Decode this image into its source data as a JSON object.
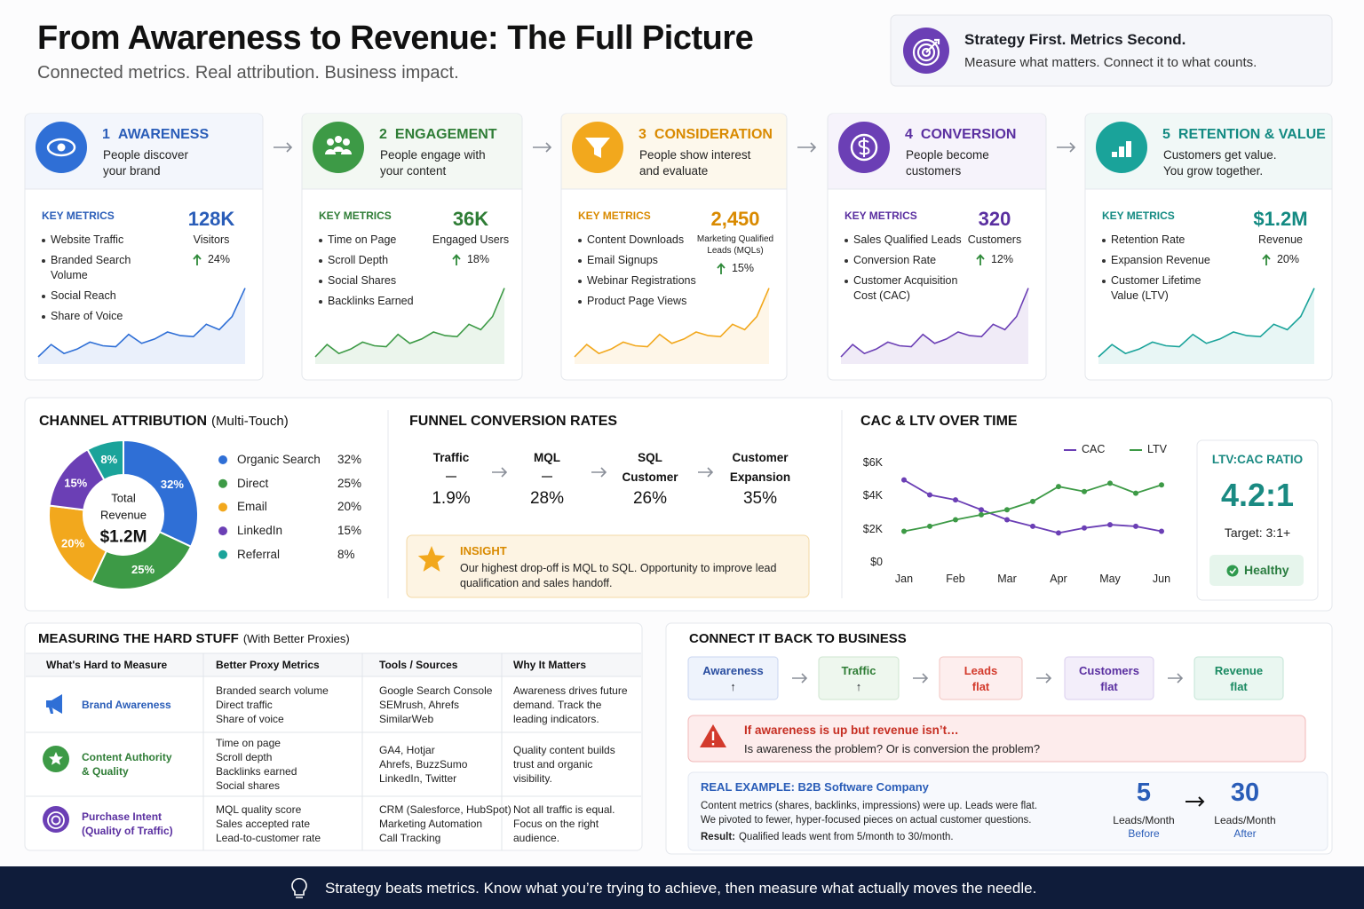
{
  "header": {
    "title": "From Awareness to Revenue: The Full Picture",
    "subtitle": "Connected metrics. Real attribution. Business impact."
  },
  "callout": {
    "title": "Strategy First. Metrics Second.",
    "text": "Measure what matters. Connect it to what counts."
  },
  "stages": [
    {
      "number": "1",
      "title": "AWARENESS",
      "description": [
        "People discover",
        "your brand"
      ],
      "metrics_heading": "KEY METRICS",
      "metrics": [
        "Website Traffic",
        "Branded Search Volume",
        "Social Reach",
        "Share of Voice"
      ],
      "kpi": "128K",
      "kpi_label": "Visitors",
      "change": "24%"
    },
    {
      "number": "2",
      "title": "ENGAGEMENT",
      "description": [
        "People engage with",
        "your content"
      ],
      "metrics_heading": "KEY METRICS",
      "metrics": [
        "Time on Page",
        "Scroll Depth",
        "Social Shares",
        "Backlinks Earned"
      ],
      "kpi": "36K",
      "kpi_label": "Engaged Users",
      "change": "18%"
    },
    {
      "number": "3",
      "title": "CONSIDERATION",
      "description": [
        "People show interest",
        "and evaluate"
      ],
      "metrics_heading": "KEY METRICS",
      "metrics": [
        "Content Downloads",
        "Email Signups",
        "Webinar Registrations",
        "Product Page Views"
      ],
      "kpi": "2,450",
      "kpi_label": "Marketing Qualified Leads (MQLs)",
      "change": "15%"
    },
    {
      "number": "4",
      "title": "CONVERSION",
      "description": [
        "People become",
        "customers"
      ],
      "metrics_heading": "KEY METRICS",
      "metrics": [
        "Sales Qualified Leads",
        "Conversion Rate",
        "Customer Acquisition Cost (CAC)"
      ],
      "kpi": "320",
      "kpi_label": "Customers",
      "change": "12%"
    },
    {
      "number": "5",
      "title": "RETENTION & VALUE",
      "description": [
        "Customers get value.",
        "You grow together."
      ],
      "metrics_heading": "KEY METRICS",
      "metrics": [
        "Retention Rate",
        "Expansion Revenue",
        "Customer Lifetime Value (LTV)"
      ],
      "kpi": "$1.2M",
      "kpi_label": "Revenue",
      "change": "20%"
    }
  ],
  "chart_data": [
    {
      "type": "pie",
      "title": "CHANNEL ATTRIBUTION",
      "subtitle": "(Multi-Touch)",
      "annotations": [
        "Total",
        "Revenue",
        "$1.2M"
      ],
      "categories": [
        "Organic Search",
        "Direct",
        "Email",
        "LinkedIn",
        "Referral"
      ],
      "values": [
        32,
        25,
        20,
        15,
        8
      ],
      "value_labels": [
        "32%",
        "25%",
        "20%",
        "15%",
        "8%"
      ],
      "colors": [
        "#2f6fd6",
        "#3d9a46",
        "#f2a81d",
        "#6b3fb5",
        "#1aa39a"
      ]
    },
    {
      "type": "line",
      "title": "CAC & LTV OVER TIME",
      "categories": [
        "Jan",
        null,
        "Feb",
        null,
        "Mar",
        null,
        "Apr",
        null,
        "May",
        null,
        "Jun"
      ],
      "series": [
        {
          "name": "CAC",
          "color": "#6b3fb5",
          "values": [
            5000,
            4100,
            3800,
            3200,
            2600,
            2200,
            1800,
            2100,
            2300,
            2200,
            1900
          ]
        },
        {
          "name": "LTV",
          "color": "#3d9a46",
          "values": [
            1900,
            2200,
            2600,
            2900,
            3200,
            3700,
            4600,
            4300,
            4800,
            4200,
            4700
          ]
        }
      ],
      "ylim": [
        0,
        6000
      ],
      "yticks": [
        {
          "value": 0,
          "label": "$0"
        },
        {
          "value": 2000,
          "label": "$2K"
        },
        {
          "value": 4000,
          "label": "$4K"
        },
        {
          "value": 6000,
          "label": "$6K"
        }
      ],
      "grid": false,
      "legend": "top-right"
    }
  ],
  "funnel": {
    "title": "FUNNEL CONVERSION RATES",
    "steps": [
      {
        "label": "Traffic",
        "rate": "1.9%"
      },
      {
        "label": "MQL",
        "rate": "28%"
      },
      {
        "label": "SQL Customer",
        "rate": "26%"
      },
      {
        "label": "Customer Expansion",
        "rate": "35%"
      }
    ]
  },
  "insight": {
    "title": "INSIGHT",
    "text": "Our highest drop-off is MQL to SQL. Opportunity to improve lead qualification and sales handoff."
  },
  "ratio": {
    "title": "LTV:CAC RATIO",
    "value": "4.2:1",
    "target": "Target: 3:1+",
    "status": "Healthy"
  },
  "hard_stuff": {
    "title": "MEASURING THE HARD STUFF",
    "subtitle": "(With Better Proxies)",
    "headers": [
      "What's Hard to Measure",
      "Better Proxy Metrics",
      "Tools / Sources",
      "Why It Matters"
    ],
    "rows": [
      [
        "Brand Awareness",
        [
          "Branded search volume",
          "Direct traffic",
          "Share of voice"
        ],
        [
          "Google Search Console",
          "SEMrush, Ahrefs",
          "SimilarWeb"
        ],
        [
          "Awareness drives future",
          "demand. Track the",
          "leading indicators."
        ]
      ],
      [
        [
          "Content Authority",
          "& Quality"
        ],
        [
          "Time on page",
          "Scroll depth",
          "Backlinks earned",
          "Social shares"
        ],
        [
          "GA4, Hotjar",
          "Ahrefs, BuzzSumo",
          "LinkedIn, Twitter"
        ],
        [
          "Quality content builds",
          "trust and organic",
          "visibility."
        ]
      ],
      [
        [
          "Purchase Intent",
          "(Quality of Traffic)"
        ],
        [
          "MQL quality score",
          "Sales accepted rate",
          "Lead-to-customer rate"
        ],
        [
          "CRM (Salesforce, HubSpot)",
          "Marketing Automation",
          "Call Tracking"
        ],
        [
          "Not all traffic is equal.",
          "Focus on the right",
          "audience."
        ]
      ]
    ]
  },
  "connect": {
    "title": "CONNECT IT BACK TO BUSINESS",
    "flow": [
      {
        "label": "Awareness",
        "status": "↑"
      },
      {
        "label": "Traffic",
        "status": "↑"
      },
      {
        "label": "Leads",
        "status": "flat"
      },
      {
        "label": "Customers",
        "status": "flat"
      },
      {
        "label": "Revenue",
        "status": "flat"
      }
    ],
    "warning": {
      "title": "If awareness is up but revenue isn’t…",
      "text": "Is awareness the problem? Or is conversion the problem?"
    },
    "example": {
      "title": "REAL EXAMPLE: B2B Software Company",
      "text": [
        "Content metrics (shares, backlinks, impressions) were up. Leads were flat.",
        "We pivoted to fewer, hyper-focused pieces on actual customer questions."
      ],
      "result_label": "Result:",
      "result": "Qualified leads went from 5/month to 30/month.",
      "before": {
        "value": "5",
        "unit": "Leads/Month",
        "label": "Before"
      },
      "after": {
        "value": "30",
        "unit": "Leads/Month",
        "label": "After"
      }
    }
  },
  "footer": "Strategy beats metrics. Know what you’re trying to achieve, then measure what actually moves the needle."
}
